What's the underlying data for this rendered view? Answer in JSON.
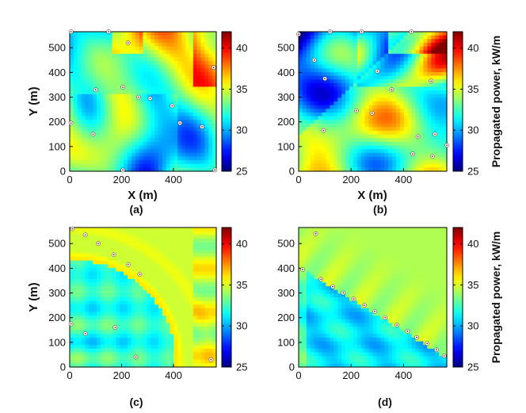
{
  "chart_data": [
    {
      "type": "heatmap",
      "panel_label": "(a)",
      "xlabel": "X (m)",
      "ylabel": "Y (m)",
      "xlim": [
        0,
        565
      ],
      "ylim": [
        0,
        565
      ],
      "xticks": [
        0,
        200,
        400
      ],
      "yticks": [
        0,
        100,
        200,
        300,
        400,
        500
      ],
      "color_range": [
        25,
        42
      ],
      "colorbar_ticks": [
        25,
        30,
        35,
        40
      ],
      "colorbar_label": "",
      "pattern": "irregular",
      "buoys": [
        [
          5,
          565
        ],
        [
          150,
          565
        ],
        [
          225,
          520
        ],
        [
          100,
          330
        ],
        [
          205,
          340
        ],
        [
          265,
          300
        ],
        [
          310,
          295
        ],
        [
          395,
          265
        ],
        [
          425,
          195
        ],
        [
          510,
          180
        ],
        [
          5,
          195
        ],
        [
          90,
          150
        ],
        [
          555,
          420
        ],
        [
          205,
          5
        ],
        [
          560,
          5
        ]
      ]
    },
    {
      "type": "heatmap",
      "panel_label": "(b)",
      "xlabel": "X (m)",
      "ylabel": "",
      "xlim": [
        0,
        565
      ],
      "ylim": [
        0,
        565
      ],
      "xticks": [
        0,
        200,
        400
      ],
      "yticks": [
        0,
        100,
        200,
        300,
        400,
        500
      ],
      "color_range": [
        25,
        42
      ],
      "colorbar_ticks": [
        25,
        30,
        35,
        40
      ],
      "colorbar_label": "Propagated power, kW/m",
      "pattern": "irregular-b",
      "buoys": [
        [
          0,
          555
        ],
        [
          120,
          565
        ],
        [
          240,
          565
        ],
        [
          430,
          565
        ],
        [
          60,
          450
        ],
        [
          100,
          375
        ],
        [
          300,
          405
        ],
        [
          505,
          365
        ],
        [
          355,
          330
        ],
        [
          220,
          245
        ],
        [
          280,
          235
        ],
        [
          95,
          165
        ],
        [
          455,
          140
        ],
        [
          520,
          150
        ],
        [
          565,
          105
        ],
        [
          435,
          70
        ],
        [
          510,
          60
        ]
      ]
    },
    {
      "type": "heatmap",
      "panel_label": "(c)",
      "xlabel": "",
      "ylabel": "Y (m)",
      "xlim": [
        0,
        565
      ],
      "ylim": [
        0,
        565
      ],
      "xticks": [
        0,
        200,
        400
      ],
      "yticks": [
        0,
        100,
        200,
        300,
        400,
        500
      ],
      "color_range": [
        25,
        42
      ],
      "colorbar_ticks": [
        25,
        30,
        35,
        40
      ],
      "colorbar_label": "",
      "pattern": "arc",
      "buoys": [
        [
          10,
          560
        ],
        [
          60,
          535
        ],
        [
          110,
          500
        ],
        [
          170,
          455
        ],
        [
          225,
          415
        ],
        [
          270,
          375
        ],
        [
          5,
          175
        ],
        [
          60,
          135
        ],
        [
          175,
          160
        ],
        [
          255,
          40
        ],
        [
          545,
          30
        ]
      ]
    },
    {
      "type": "heatmap",
      "panel_label": "(d)",
      "xlabel": "",
      "ylabel": "",
      "xlim": [
        0,
        565
      ],
      "ylim": [
        0,
        565
      ],
      "xticks": [
        0,
        200,
        400
      ],
      "yticks": [
        0,
        100,
        200,
        300,
        400,
        500
      ],
      "color_range": [
        25,
        42
      ],
      "colorbar_ticks": [
        25,
        30,
        35,
        40
      ],
      "colorbar_label": "Propagated power, kW/m",
      "pattern": "diagonal",
      "buoys": [
        [
          65,
          540
        ],
        [
          15,
          395
        ],
        [
          85,
          355
        ],
        [
          130,
          325
        ],
        [
          170,
          300
        ],
        [
          210,
          275
        ],
        [
          250,
          250
        ],
        [
          290,
          225
        ],
        [
          330,
          200
        ],
        [
          375,
          170
        ],
        [
          415,
          145
        ],
        [
          450,
          120
        ],
        [
          490,
          95
        ],
        [
          525,
          70
        ],
        [
          555,
          45
        ]
      ]
    }
  ]
}
